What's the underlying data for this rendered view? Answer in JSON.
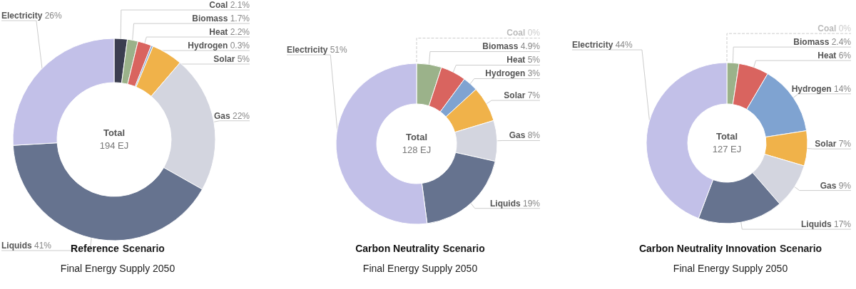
{
  "chart_data": [
    {
      "type": "donut",
      "title": "Reference Scenario",
      "subtitle": "Final Energy Supply 2050",
      "annotations": [
        "Total",
        "194 EJ"
      ],
      "legend": false,
      "categories": [
        "Coal",
        "Biomass",
        "Heat",
        "Hydrogen",
        "Solar",
        "Gas",
        "Liquids",
        "Electricity"
      ],
      "values": [
        2.1,
        1.7,
        2.2,
        0.3,
        5,
        22,
        41,
        26
      ],
      "value_labels": [
        "2.1%",
        "1.7%",
        "2.2%",
        "0.3%",
        "5%",
        "22%",
        "41%",
        "26%"
      ],
      "colors": [
        "#3b3e50",
        "#9bb28a",
        "#d9645f",
        "#7fa3d1",
        "#f0b24a",
        "#d3d5df",
        "#66738f",
        "#c2c0e8"
      ]
    },
    {
      "type": "donut",
      "title": "Carbon Neutrality Scenario",
      "subtitle": "Final Energy Supply 2050",
      "annotations": [
        "Total",
        "128 EJ"
      ],
      "legend": false,
      "categories": [
        "Coal",
        "Biomass",
        "Heat",
        "Hydrogen",
        "Solar",
        "Gas",
        "Liquids",
        "Electricity"
      ],
      "values": [
        0,
        4.9,
        5,
        3,
        7,
        8,
        19,
        51
      ],
      "value_labels": [
        "0%",
        "4.9%",
        "5%",
        "3%",
        "7%",
        "8%",
        "19%",
        "51%"
      ],
      "colors": [
        "#3b3e50",
        "#9bb28a",
        "#d9645f",
        "#7fa3d1",
        "#f0b24a",
        "#d3d5df",
        "#66738f",
        "#c2c0e8"
      ]
    },
    {
      "type": "donut",
      "title": "Carbon Neutrality Innovation Scenario",
      "subtitle": "Final Energy Supply 2050",
      "annotations": [
        "Total",
        "127 EJ"
      ],
      "legend": false,
      "categories": [
        "Coal",
        "Biomass",
        "Heat",
        "Hydrogen",
        "Solar",
        "Gas",
        "Liquids",
        "Electricity"
      ],
      "values": [
        0,
        2.4,
        6,
        14,
        7,
        9,
        17,
        44
      ],
      "value_labels": [
        "0%",
        "2.4%",
        "6%",
        "14%",
        "7%",
        "9%",
        "17%",
        "44%"
      ],
      "colors": [
        "#3b3e50",
        "#9bb28a",
        "#d9645f",
        "#7fa3d1",
        "#f0b24a",
        "#d3d5df",
        "#66738f",
        "#c2c0e8"
      ]
    }
  ]
}
